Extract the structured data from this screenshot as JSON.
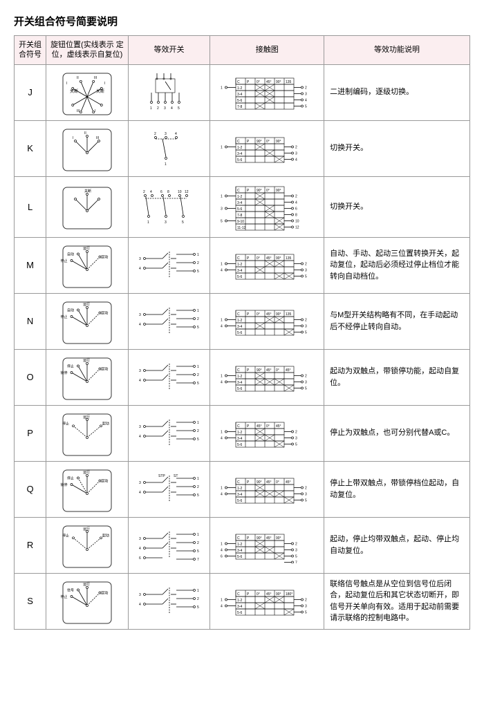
{
  "title": "开关组合符号简要说明",
  "headers": {
    "symbol": "开关组\n合符号",
    "knob": "旋钮位置(实线表示\n定位，虚线表示自复位)",
    "equiv": "等效开关",
    "contact": "接触图",
    "func": "等效功能说明"
  },
  "rows": [
    {
      "sym": "J",
      "knob": {
        "type": "j",
        "labels": [
          "关断",
          "关断",
          "I",
          "II",
          "III",
          "I",
          "II",
          "III"
        ]
      },
      "contact": {
        "cols": [
          "C",
          "P",
          "0°",
          "45°",
          "90°",
          "135"
        ],
        "rows": [
          "1-2",
          "3-4",
          "5-6",
          "7-8"
        ],
        "right": [
          "2",
          "3",
          "4",
          "5"
        ],
        "left": [
          "1"
        ],
        "x": [
          [
            0,
            2
          ],
          [
            0,
            3
          ],
          [
            1,
            2
          ],
          [
            1,
            3
          ],
          [
            2,
            3
          ],
          [
            3,
            2
          ]
        ]
      },
      "desc": "二进制编码，逐级切换。"
    },
    {
      "sym": "K",
      "knob": {
        "type": "3pos",
        "labels": [
          "I",
          "II",
          "III"
        ]
      },
      "contact": {
        "cols": [
          "C",
          "P",
          "90°",
          "0°",
          "90°"
        ],
        "rows": [
          "1-2",
          "3-4",
          "5-6"
        ],
        "right": [
          "2",
          "3",
          "4"
        ],
        "left": [
          "1"
        ],
        "x": [
          [
            0,
            2
          ],
          [
            1,
            3
          ],
          [
            2,
            4
          ]
        ]
      },
      "desc": "切换开关。"
    },
    {
      "sym": "L",
      "knob": {
        "type": "3pos",
        "labels": [
          "",
          "关断",
          ""
        ]
      },
      "contact": {
        "cols": [
          "C",
          "P",
          "90°",
          "0°",
          "90°"
        ],
        "rows": [
          "1-2",
          "3-4",
          "5-6",
          "7-8",
          "9-10",
          "11-12"
        ],
        "right": [
          "2",
          "4",
          "6",
          "8",
          "10",
          "12"
        ],
        "left": [
          "1",
          "3",
          "5"
        ],
        "x": [
          [
            0,
            2
          ],
          [
            1,
            2
          ],
          [
            2,
            3
          ],
          [
            3,
            3
          ],
          [
            4,
            4
          ],
          [
            5,
            4
          ]
        ]
      },
      "desc": "切换开关。"
    },
    {
      "sym": "M",
      "knob": {
        "type": "4line",
        "labels": [
          "停止",
          "自动",
          "运行",
          "起动"
        ],
        "dash": [
          3
        ]
      },
      "contact": {
        "cols": [
          "C",
          "P",
          "0°",
          "45°",
          "90°",
          "135"
        ],
        "rows": [
          "1-2",
          "3-4",
          "5-6"
        ],
        "right": [
          "2",
          "3",
          "5"
        ],
        "left": [
          "1",
          "4"
        ],
        "x": [
          [
            0,
            3
          ],
          [
            0,
            4
          ],
          [
            1,
            2
          ],
          [
            2,
            4
          ],
          [
            2,
            5
          ]
        ]
      },
      "desc": "自动、手动、起动三位置转换开关，起动复位，起动后必须经过停止档位才能转向自动档位。"
    },
    {
      "sym": "N",
      "knob": {
        "type": "4line",
        "labels": [
          "停止",
          "自动",
          "运行",
          "起动"
        ],
        "dash": [
          3
        ]
      },
      "contact": {
        "cols": [
          "C",
          "P",
          "0°",
          "45°",
          "90°",
          "135"
        ],
        "rows": [
          "1-2",
          "3-4",
          "5-6"
        ],
        "right": [
          "2",
          "3",
          "5"
        ],
        "left": [
          "1",
          "4"
        ],
        "x": [
          [
            0,
            3
          ],
          [
            0,
            4
          ],
          [
            1,
            2
          ],
          [
            2,
            5
          ]
        ]
      },
      "desc": "与M型开关结构略有不同，在手动起动后不经停止转向自动。"
    },
    {
      "sym": "O",
      "knob": {
        "type": "4line",
        "labels": [
          "锁停",
          "停止",
          "运行",
          "起动"
        ],
        "dash": [
          3
        ]
      },
      "contact": {
        "cols": [
          "C",
          "P",
          "90°",
          "45°",
          "0°",
          "45°"
        ],
        "rows": [
          "1-2",
          "3-4",
          "5-6"
        ],
        "right": [
          "2",
          "3",
          "5"
        ],
        "left": [
          "1",
          "4"
        ],
        "x": [
          [
            0,
            2
          ],
          [
            1,
            2
          ],
          [
            1,
            3
          ],
          [
            1,
            4
          ],
          [
            2,
            5
          ]
        ]
      },
      "desc": "起动为双触点，带锁停功能，起动自复位。"
    },
    {
      "sym": "P",
      "knob": {
        "type": "3line",
        "labels": [
          "停止",
          "运行",
          "起动"
        ],
        "dash": [
          0,
          2
        ]
      },
      "contact": {
        "cols": [
          "C",
          "P",
          "45°",
          "0°",
          "45°"
        ],
        "rows": [
          "1-2",
          "3-4",
          "5-6"
        ],
        "right": [
          "2",
          "3",
          "5"
        ],
        "left": [
          "1",
          "4"
        ],
        "x": [
          [
            0,
            2
          ],
          [
            1,
            2
          ],
          [
            1,
            3
          ],
          [
            2,
            4
          ]
        ]
      },
      "desc": "停止为双触点，也可分别代替A或C。"
    },
    {
      "sym": "Q",
      "knob": {
        "type": "4line",
        "labels": [
          "锁停",
          "停止",
          "运行",
          "起动"
        ],
        "dash": [
          1,
          3
        ]
      },
      "contact": {
        "cols": [
          "C",
          "P",
          "90°",
          "45°",
          "0°",
          "45°"
        ],
        "rows": [
          "1-2",
          "3-4",
          "5-6"
        ],
        "right": [
          "2",
          "3",
          "5"
        ],
        "left": [
          "1",
          "4"
        ],
        "x": [
          [
            0,
            2
          ],
          [
            1,
            2
          ],
          [
            1,
            3
          ],
          [
            1,
            4
          ],
          [
            2,
            5
          ]
        ]
      },
      "desc": "停止上带双触点，带锁停档位起动，自动复位。"
    },
    {
      "sym": "R",
      "knob": {
        "type": "3line",
        "labels": [
          "停止",
          "运行",
          "起动"
        ],
        "dash": [
          0,
          2
        ]
      },
      "contact": {
        "cols": [
          "C",
          "P",
          "90°",
          "45°",
          "90°"
        ],
        "rows": [
          "1-2",
          "3-4",
          "5-6"
        ],
        "right": [
          "2",
          "3",
          "5",
          "7"
        ],
        "left": [
          "1",
          "4",
          "6"
        ],
        "x": [
          [
            0,
            2
          ],
          [
            1,
            2
          ],
          [
            1,
            3
          ],
          [
            2,
            4
          ]
        ]
      },
      "desc": "起动，停止均带双触点，起动、停止均自动复位。"
    },
    {
      "sym": "S",
      "knob": {
        "type": "4line",
        "labels": [
          "停止",
          "信号",
          "运行",
          "起动"
        ],
        "dash": [
          3
        ]
      },
      "contact": {
        "cols": [
          "C",
          "P",
          "0°",
          "45°",
          "90°",
          "180°"
        ],
        "rows": [
          "1-2",
          "3-4",
          "5-6"
        ],
        "right": [
          "2",
          "3",
          "5"
        ],
        "left": [
          "1",
          "4"
        ],
        "x": [
          [
            0,
            3
          ],
          [
            0,
            4
          ],
          [
            1,
            2
          ],
          [
            2,
            5
          ]
        ]
      },
      "desc": "联络信号触点是从空位到信号位后闭合，起动复位后和其它状态切断开，即信号开关单向有效。适用于起动前需要请示联络的控制电路中。"
    }
  ]
}
